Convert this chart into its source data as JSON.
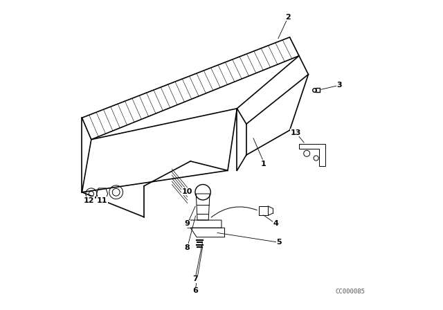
{
  "bg_color": "#ffffff",
  "line_color": "#000000",
  "text_color": "#000000",
  "fig_width": 6.4,
  "fig_height": 4.48,
  "dpi": 100,
  "watermark": "CC000085"
}
